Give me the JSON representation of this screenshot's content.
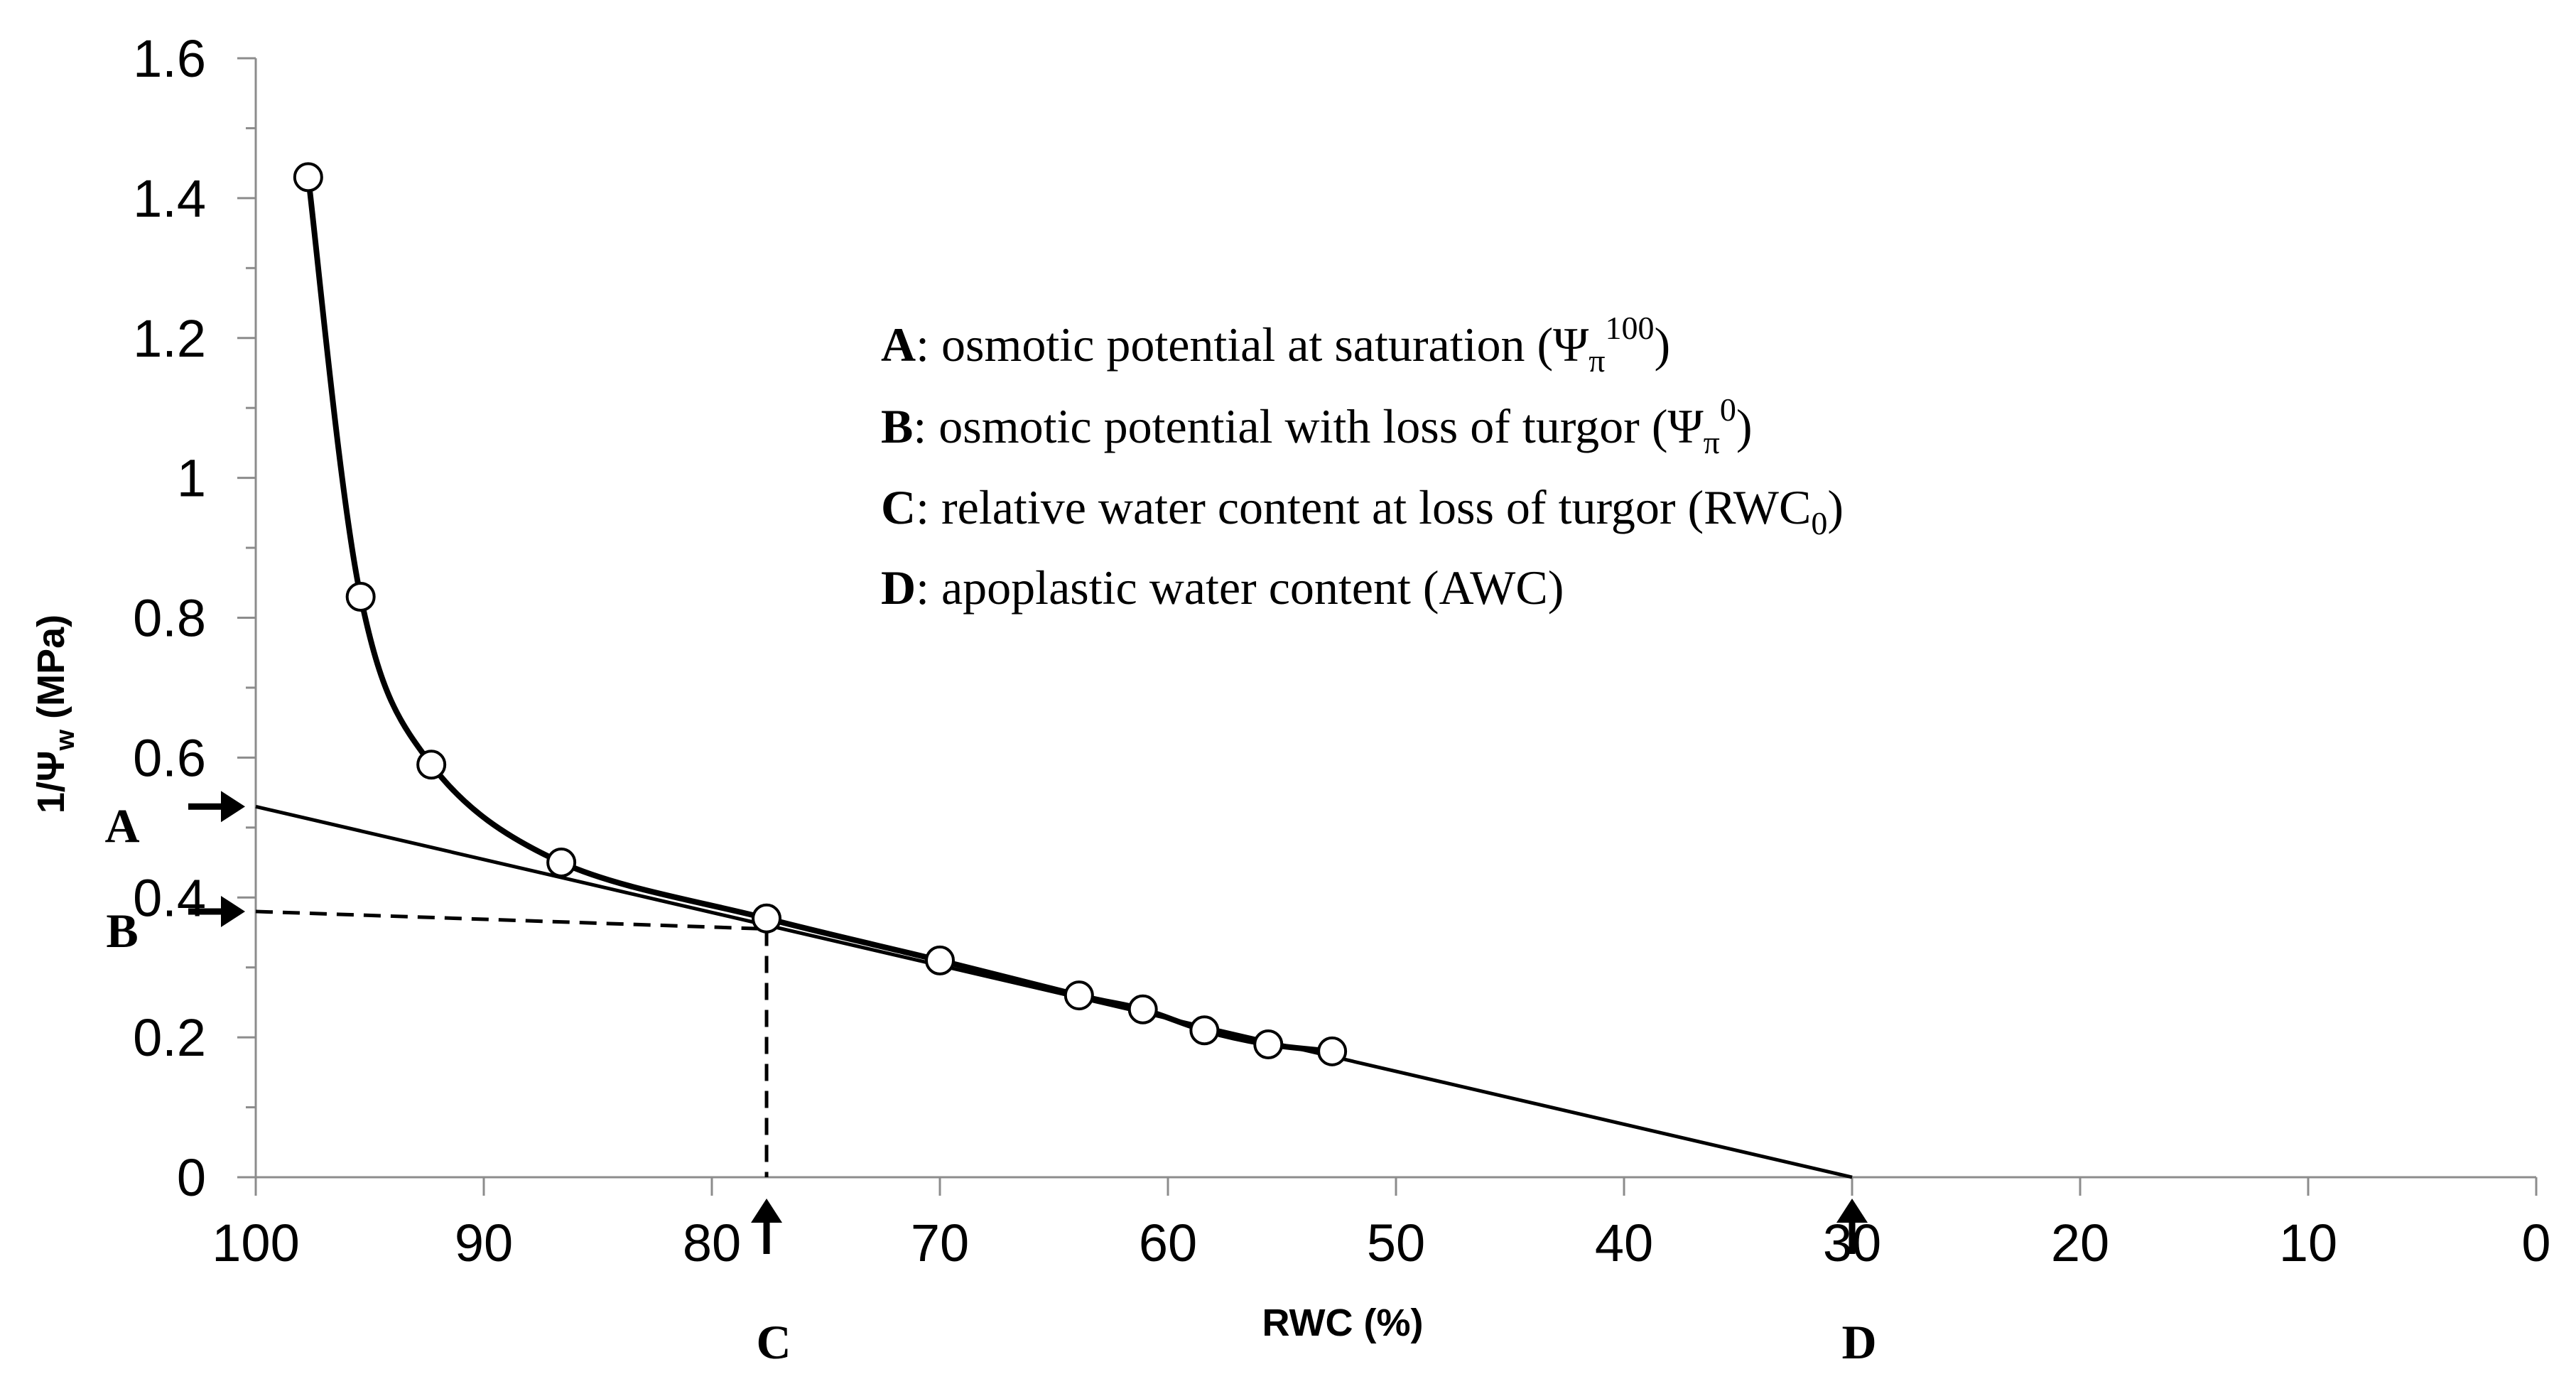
{
  "chart_data": {
    "type": "scatter",
    "title": "",
    "xlabel": "RWC (%)",
    "ylabel_parts": {
      "main": "1/Ψ",
      "sub": "w",
      "unit": " (MPa)"
    },
    "xlim": [
      100,
      0
    ],
    "ylim": [
      0,
      1.6
    ],
    "x_ticks": [
      "100",
      "90",
      "80",
      "70",
      "60",
      "50",
      "40",
      "30",
      "20",
      "10",
      "0"
    ],
    "y_ticks": [
      "0",
      "0.2",
      "0.4",
      "0.6",
      "0.8",
      "1",
      "1.2",
      "1.4",
      "1.6"
    ],
    "grid": false,
    "x_axis_reversed": true,
    "series": [
      {
        "x": [
          97.7,
          95.4,
          92.3,
          86.6,
          77.6,
          70.0,
          63.9,
          61.1,
          58.4,
          55.6,
          52.8
        ],
        "y": [
          1.43,
          0.83,
          0.59,
          0.45,
          0.37,
          0.31,
          0.26,
          0.24,
          0.21,
          0.19,
          0.18
        ]
      }
    ],
    "fit_line": {
      "x": [
        100,
        30
      ],
      "y": [
        0.53,
        0
      ]
    },
    "reference_lines": {
      "horizontal": {
        "x": [
          100,
          77.6
        ],
        "y": [
          0.38,
          0.355
        ]
      },
      "vertical": {
        "x": 77.6,
        "y": [
          0.355,
          0
        ]
      }
    },
    "arrow_markers": [
      {
        "letter": "A",
        "axis": "y",
        "value": 0.53
      },
      {
        "letter": "B",
        "axis": "y",
        "value": 0.38
      },
      {
        "letter": "C",
        "axis": "x",
        "value": 77.6
      },
      {
        "letter": "D",
        "axis": "x",
        "value": 30
      }
    ],
    "legend": [
      {
        "key": "A",
        "text": ": osmotic potential at saturation (Ψ",
        "sub": "π",
        "sup": "100",
        "tail": ")"
      },
      {
        "key": "B",
        "text": ": osmotic potential with loss of turgor (Ψ",
        "sub": "π",
        "sup": "0",
        "tail": ")"
      },
      {
        "key": "C",
        "text": ": relative water content at loss of turgor (RWC",
        "sub": "0",
        "sup": "",
        "tail": ")"
      },
      {
        "key": "D",
        "text": ": apoplastic water content (AWC)",
        "sub": "",
        "sup": "",
        "tail": ""
      }
    ]
  }
}
